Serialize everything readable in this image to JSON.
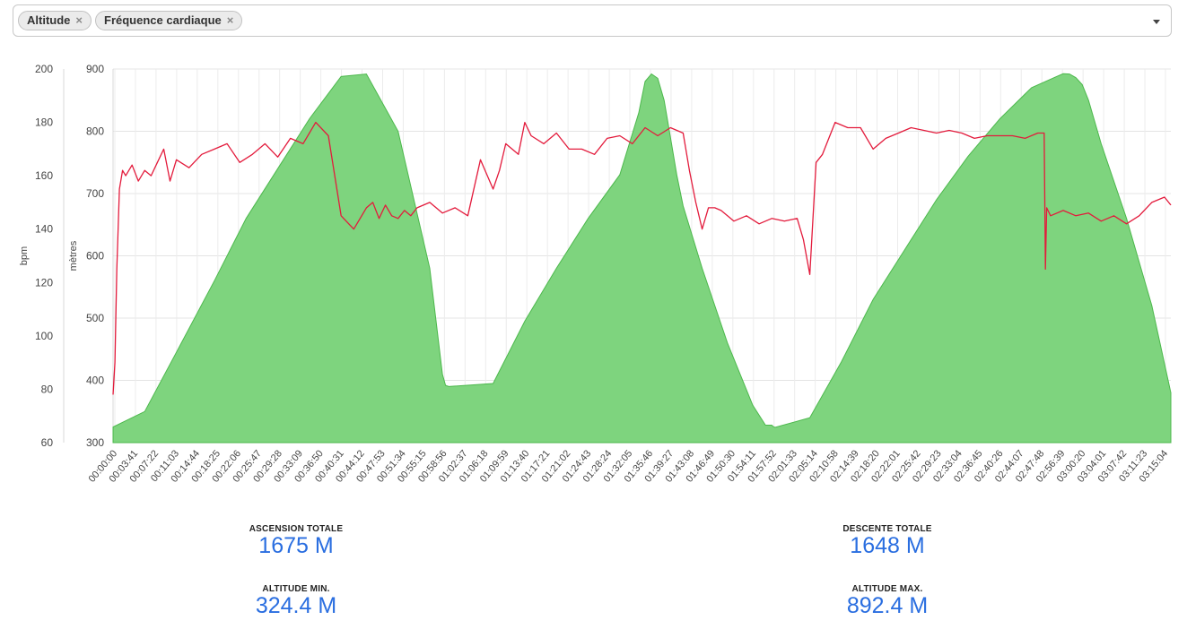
{
  "filters": {
    "tags": [
      {
        "label": "Altitude",
        "remove_icon": "×"
      },
      {
        "label": "Fréquence cardiaque",
        "remove_icon": "×"
      }
    ],
    "dropdown_icon": "chevron-down-icon"
  },
  "chart_data": {
    "type": "area",
    "x_tick_labels": [
      "00:00:00",
      "00:03:41",
      "00:07:22",
      "00:11:03",
      "00:14:44",
      "00:18:25",
      "00:22:06",
      "00:25:47",
      "00:29:28",
      "00:33:09",
      "00:36:50",
      "00:40:31",
      "00:44:12",
      "00:47:53",
      "00:51:34",
      "00:55:15",
      "00:58:56",
      "01:02:37",
      "01:06:18",
      "01:09:59",
      "01:13:40",
      "01:17:21",
      "01:21:02",
      "01:24:43",
      "01:28:24",
      "01:32:05",
      "01:35:46",
      "01:39:27",
      "01:43:08",
      "01:46:49",
      "01:50:30",
      "01:54:11",
      "01:57:52",
      "02:01:33",
      "02:05:14",
      "02:10:58",
      "02:14:39",
      "02:18:20",
      "02:22:01",
      "02:25:42",
      "02:29:23",
      "02:33:04",
      "02:36:45",
      "02:40:26",
      "02:44:07",
      "02:47:48",
      "02:56:39",
      "03:00:20",
      "03:04:01",
      "03:07:42",
      "03:11:23",
      "03:15:04"
    ],
    "grid": true,
    "left_axis": {
      "label": "bpm",
      "range": [
        60,
        200
      ],
      "ticks": [
        "200",
        "180",
        "160",
        "140",
        "120",
        "100",
        "80",
        "60"
      ]
    },
    "right_axis": {
      "label": "mètres",
      "range": [
        300,
        900
      ],
      "ticks": [
        "900",
        "800",
        "700",
        "600",
        "500",
        "400",
        "300"
      ]
    },
    "series": [
      {
        "name": "Altitude",
        "type": "area",
        "axis": "mètres",
        "color": "#7ed47e",
        "stroke": "#4cb84c",
        "x": [
          0,
          1,
          5,
          10,
          16,
          21,
          26,
          31,
          36,
          40,
          45,
          50,
          52,
          52.5,
          53,
          60,
          65,
          70,
          75,
          80,
          83,
          84,
          85,
          86,
          87,
          88,
          89,
          90,
          93,
          97,
          101,
          103,
          104,
          104.2,
          104.5,
          110,
          115,
          120,
          125,
          130,
          135,
          140,
          145,
          149,
          150,
          151,
          152,
          153,
          154,
          156,
          160,
          164,
          167
        ],
        "y": [
          325,
          330,
          350,
          445,
          560,
          660,
          740,
          820,
          888,
          892,
          800,
          580,
          410,
          392,
          390,
          395,
          495,
          580,
          660,
          730,
          830,
          880,
          892,
          885,
          850,
          790,
          730,
          680,
          580,
          460,
          360,
          328,
          328,
          326,
          324.4,
          340,
          430,
          530,
          610,
          690,
          760,
          820,
          870,
          888,
          892.4,
          892,
          886,
          875,
          850,
          780,
          660,
          520,
          380
        ]
      },
      {
        "name": "Fréquence cardiaque",
        "type": "line",
        "axis": "bpm",
        "color": "#e31b3c",
        "x": [
          0,
          0.3,
          0.6,
          1,
          1.5,
          2,
          3,
          4,
          5,
          6,
          7,
          8,
          9,
          10,
          12,
          14,
          16,
          18,
          20,
          22,
          24,
          26,
          28,
          30,
          32,
          34,
          36,
          38,
          40,
          41,
          42,
          43,
          44,
          45,
          46,
          47,
          48,
          50,
          52,
          54,
          56,
          58,
          60,
          61,
          62,
          63,
          64,
          65,
          66,
          68,
          70,
          72,
          74,
          76,
          78,
          80,
          82,
          84,
          86,
          88,
          90,
          91,
          92,
          93,
          94,
          95,
          96,
          97,
          98,
          100,
          102,
          104,
          106,
          108,
          109,
          110,
          111,
          112,
          114,
          116,
          118,
          120,
          122,
          124,
          126,
          128,
          130,
          132,
          134,
          136,
          138,
          140,
          142,
          144,
          146,
          147,
          147.2,
          147.4,
          148,
          150,
          152,
          154,
          156,
          158,
          160,
          162,
          164,
          166,
          167
        ],
        "y": [
          78,
          90,
          125,
          155,
          162,
          160,
          164,
          158,
          162,
          160,
          165,
          170,
          158,
          166,
          163,
          168,
          170,
          172,
          165,
          168,
          172,
          167,
          174,
          172,
          180,
          175,
          145,
          140,
          148,
          150,
          144,
          149,
          145,
          144,
          147,
          145,
          148,
          150,
          146,
          148,
          145,
          166,
          155,
          162,
          172,
          170,
          168,
          180,
          175,
          172,
          176,
          170,
          170,
          168,
          174,
          175,
          172,
          178,
          175,
          178,
          176,
          162,
          150,
          140,
          148,
          148,
          147,
          145,
          143,
          145,
          142,
          144,
          143,
          144,
          136,
          123,
          165,
          168,
          180,
          178,
          178,
          170,
          174,
          176,
          178,
          177,
          176,
          177,
          176,
          174,
          175,
          175,
          175,
          174,
          176,
          176,
          125,
          148,
          145,
          147,
          145,
          146,
          143,
          145,
          142,
          145,
          150,
          152,
          149
        ]
      }
    ],
    "ascent": {
      "label": "ASCENSION TOTALE",
      "value": "1675 M"
    },
    "descent": {
      "label": "DESCENTE TOTALE",
      "value": "1648 M"
    },
    "alt_min": {
      "label": "ALTITUDE MIN.",
      "value": "324.4 M"
    },
    "alt_max": {
      "label": "ALTITUDE MAX.",
      "value": "892.4 M"
    }
  }
}
